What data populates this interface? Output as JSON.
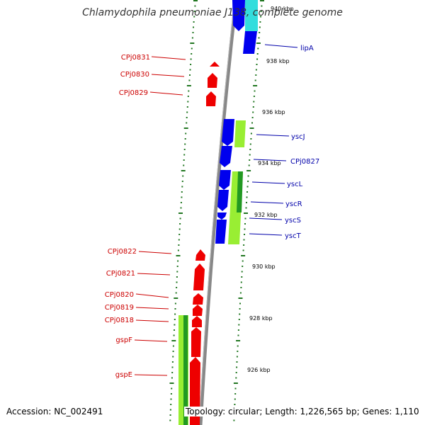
{
  "title": "Chlamydophila pneumoniae J138, complete genome",
  "footer": {
    "accession": "Accession: NC_002491",
    "topology": "Topology: circular; Length: 1,226,565 bp; Genes: 1,110"
  },
  "colors": {
    "reverse_gene": "#ff0000",
    "forward_gene": "#0000ee",
    "cyan_feature": "#33dddd",
    "green_feature": "#99ee33",
    "dark_green_feature": "#229922",
    "backbone": "#888888",
    "tick_dots": "#227722",
    "red_label": "#cc0000",
    "blue_label": "#0000aa"
  },
  "tick_labels": [
    {
      "label": "940 kbp",
      "kbp": 940
    },
    {
      "label": "938 kbp",
      "kbp": 938
    },
    {
      "label": "936 kbp",
      "kbp": 936
    },
    {
      "label": "934 kbp",
      "kbp": 934
    },
    {
      "label": "932 kbp",
      "kbp": 932
    },
    {
      "label": "930 kbp",
      "kbp": 930
    },
    {
      "label": "928 kbp",
      "kbp": 928
    },
    {
      "label": "926 kbp",
      "kbp": 926
    }
  ],
  "left_labels": [
    "CPj0831",
    "CPj0830",
    "CPj0829",
    "CPj0822",
    "CPj0821",
    "CPj0820",
    "CPj0819",
    "CPj0818",
    "gspF",
    "gspE"
  ],
  "right_labels": [
    "lipA",
    "yscJ",
    "CPj0827",
    "yscL",
    "yscR",
    "yscS",
    "yscT"
  ]
}
